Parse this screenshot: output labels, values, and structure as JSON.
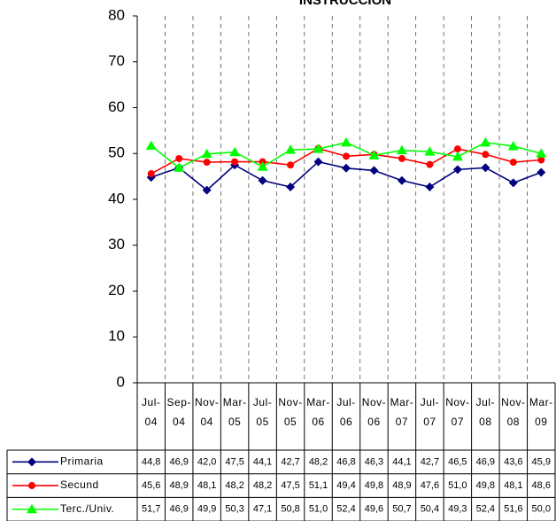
{
  "chart_data": {
    "type": "line",
    "title": "INSTRUCCION",
    "categories": [
      "Jul-04",
      "Sep-04",
      "Nov-04",
      "Mar-05",
      "Jul-05",
      "Nov-05",
      "Mar-06",
      "Jul-06",
      "Nov-06",
      "Mar-07",
      "Jul-07",
      "Nov-07",
      "Jul-08",
      "Nov-08",
      "Mar-09"
    ],
    "series": [
      {
        "name": "Primaria",
        "color": "#000080",
        "marker": "diamond",
        "values": [
          44.8,
          46.9,
          42.0,
          47.5,
          44.1,
          42.7,
          48.2,
          46.8,
          46.3,
          44.1,
          42.7,
          46.5,
          46.9,
          43.6,
          45.9
        ],
        "value_labels": [
          "44,8",
          "46,9",
          "42,0",
          "47,5",
          "44,1",
          "42,7",
          "48,2",
          "46,8",
          "46,3",
          "44,1",
          "42,7",
          "46,5",
          "46,9",
          "43,6",
          "45,9"
        ]
      },
      {
        "name": "Secund",
        "color": "#ff0000",
        "marker": "circle",
        "values": [
          45.6,
          48.9,
          48.1,
          48.2,
          48.2,
          47.5,
          51.1,
          49.4,
          49.8,
          48.9,
          47.6,
          51.0,
          49.8,
          48.1,
          48.6
        ],
        "value_labels": [
          "45,6",
          "48,9",
          "48,1",
          "48,2",
          "48,2",
          "47,5",
          "51,1",
          "49,4",
          "49,8",
          "48,9",
          "47,6",
          "51,0",
          "49,8",
          "48,1",
          "48,6"
        ]
      },
      {
        "name": "Terc./Univ.",
        "color": "#00ff00",
        "marker": "triangle",
        "values": [
          51.7,
          46.9,
          49.9,
          50.3,
          47.1,
          50.8,
          51.0,
          52.4,
          49.6,
          50.7,
          50.4,
          49.3,
          52.4,
          51.6,
          50.0
        ],
        "value_labels": [
          "51,7",
          "46,9",
          "49,9",
          "50,3",
          "47,1",
          "50,8",
          "51,0",
          "52,4",
          "49,6",
          "50,7",
          "50,4",
          "49,3",
          "52,4",
          "51,6",
          "50,0"
        ]
      }
    ],
    "ylim": [
      0,
      80
    ],
    "yticks": [
      0,
      10,
      20,
      30,
      40,
      50,
      60,
      70,
      80
    ],
    "grid": "x-dashed"
  }
}
